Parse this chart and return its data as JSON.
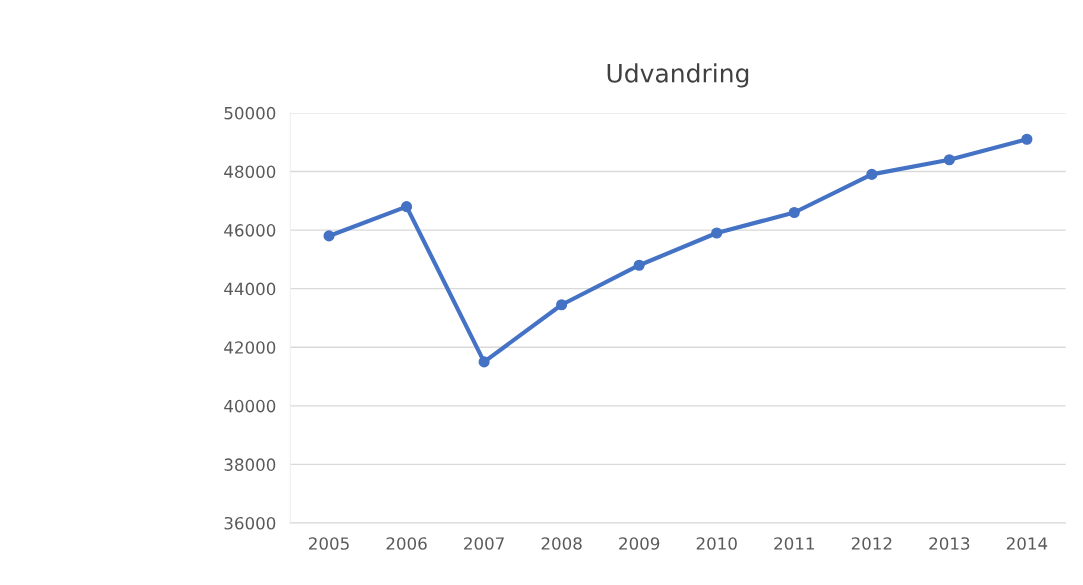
{
  "chart_data": {
    "type": "line",
    "title": "Udvandring",
    "categories": [
      "2005",
      "2006",
      "2007",
      "2008",
      "2009",
      "2010",
      "2011",
      "2012",
      "2013",
      "2014"
    ],
    "series": [
      {
        "color": "#4472c4",
        "values": [
          45800,
          46800,
          41500,
          43450,
          44800,
          45900,
          46600,
          47900,
          48400,
          49100
        ]
      }
    ],
    "ylim": [
      36000,
      50000
    ],
    "yticks": [
      36000,
      38000,
      40000,
      42000,
      44000,
      46000,
      48000,
      50000
    ],
    "grid": "y",
    "marker": "circle",
    "line_style": "solid"
  }
}
